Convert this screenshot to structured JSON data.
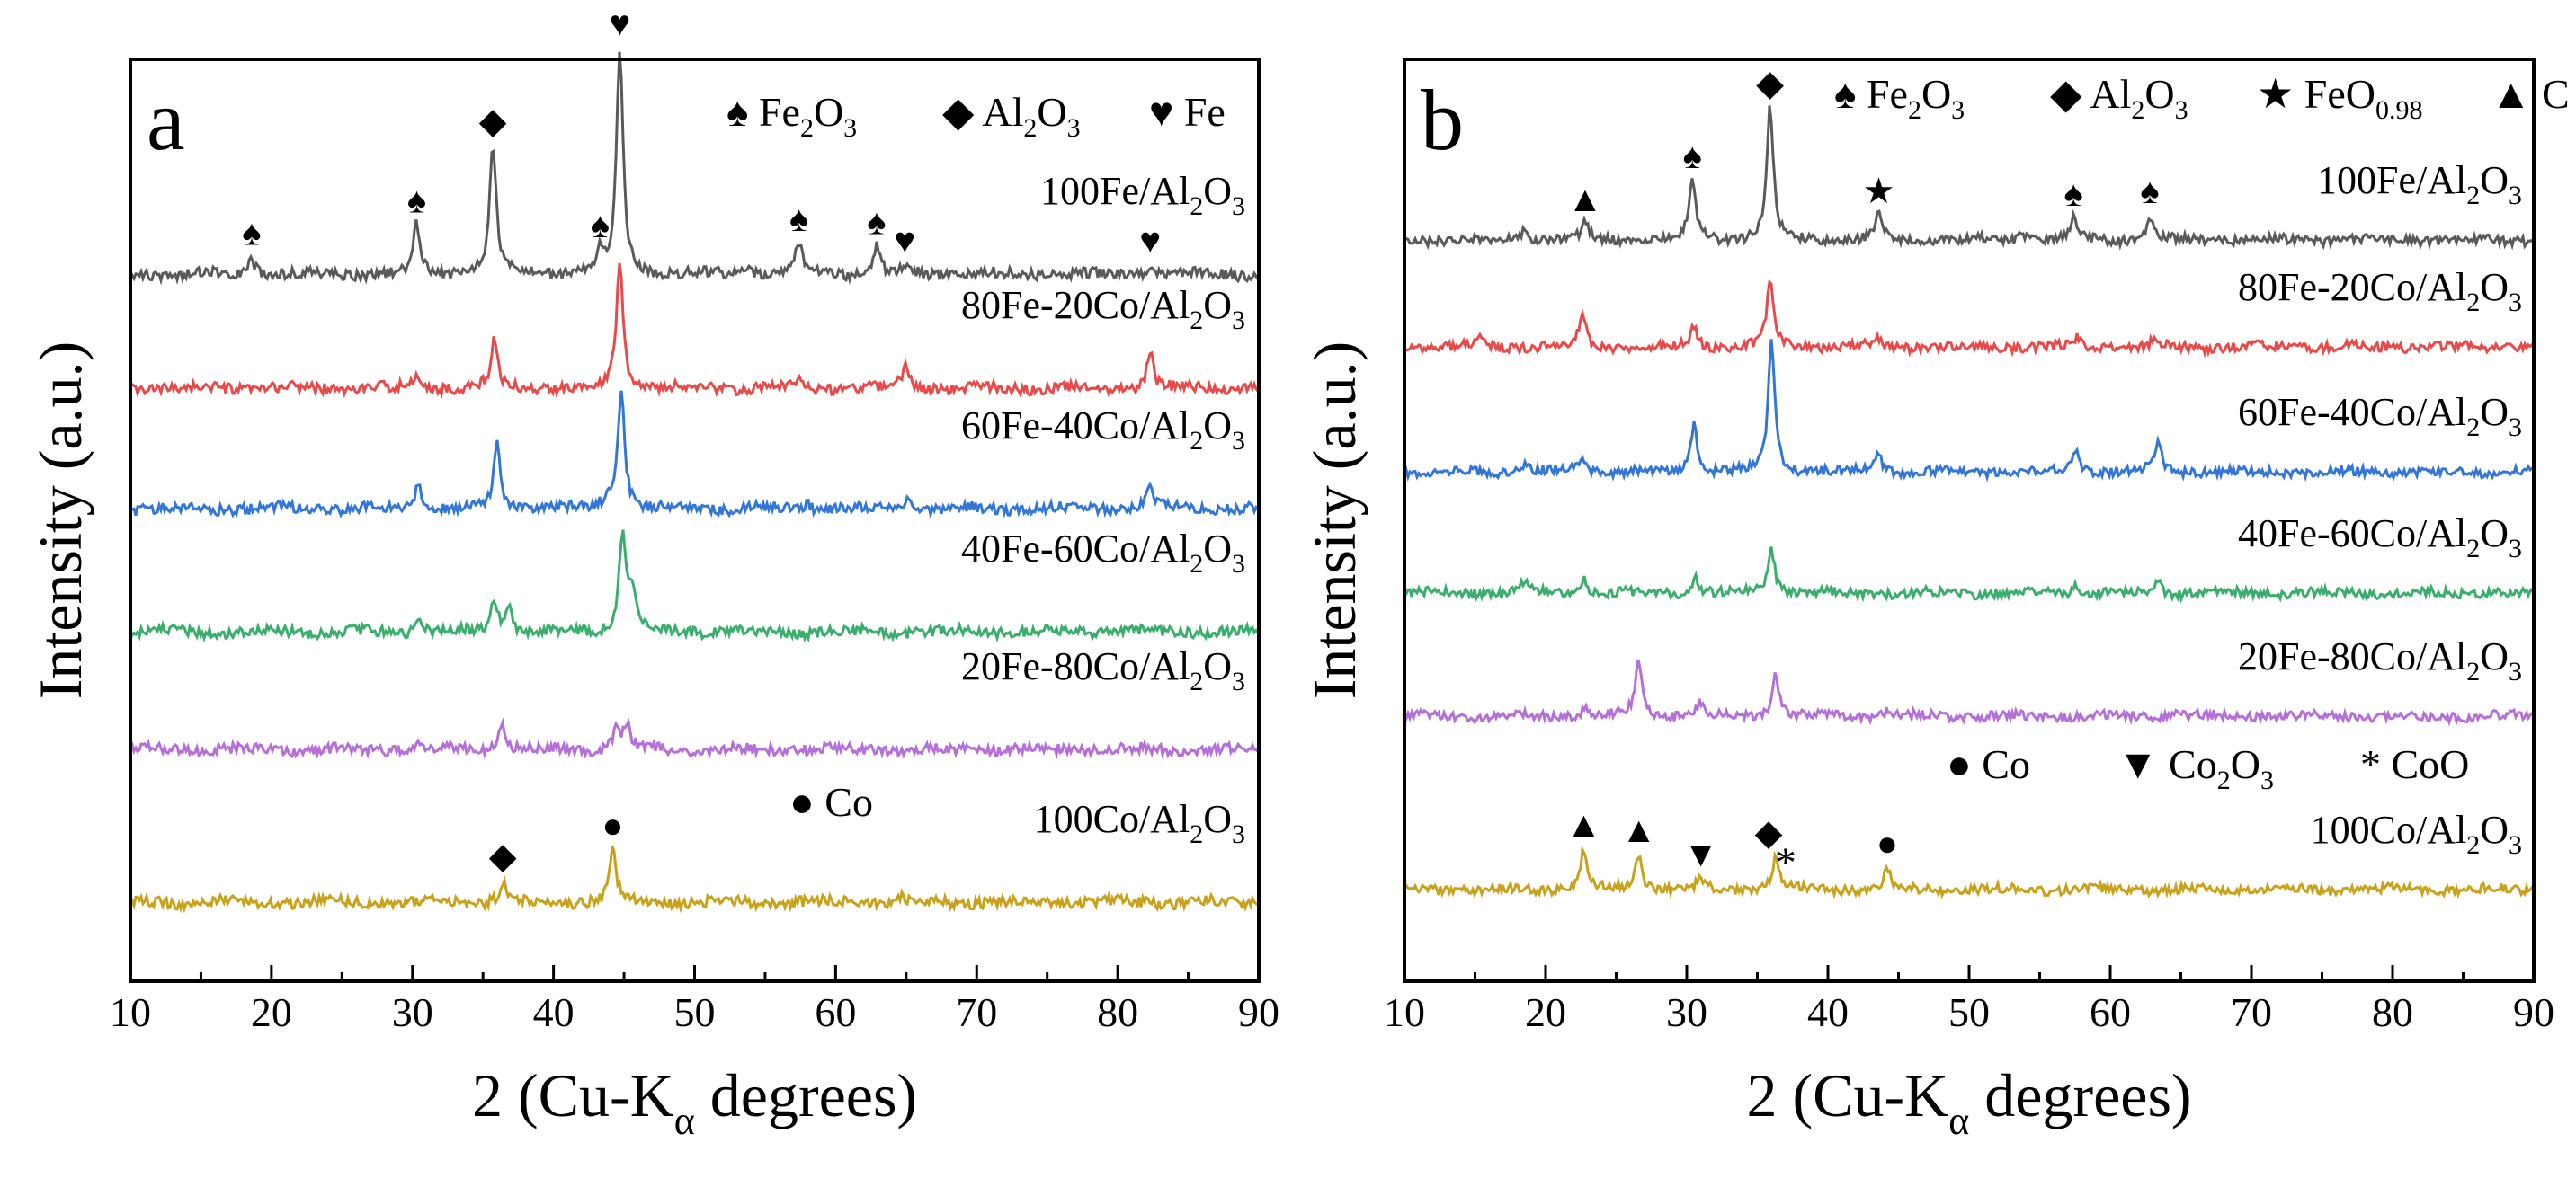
{
  "chart_data": [
    {
      "type": "line",
      "panel_label": "a",
      "xlabel_prefix": "2",
      "xlabel_main": "(Cu-K",
      "xlabel_sub": "α",
      "xlabel_suffix": " degrees)",
      "ylabel": "Intensity (a.u.)",
      "xlim": [
        10,
        90
      ],
      "xticks": [
        "10",
        "20",
        "30",
        "40",
        "50",
        "60",
        "70",
        "80",
        "90"
      ],
      "grid": false,
      "colors": [
        "#5a5a5a",
        "#e84a4a",
        "#3276d8",
        "#3aae6c",
        "#b56fd8",
        "#c9a21a"
      ],
      "series": [
        {
          "name": "100Fe/Al2O3",
          "label_main": "100Fe/Al",
          "label_sub": "2",
          "label_tail": "O",
          "label_sub2": "3",
          "baseline": 0,
          "peaks": [
            [
              18.6,
              0.55
            ],
            [
              30.3,
              1.6
            ],
            [
              35.7,
              4.2
            ],
            [
              43.3,
              0.8
            ],
            [
              44.7,
              7.4
            ],
            [
              53.8,
              0.2
            ],
            [
              57.4,
              1.0
            ],
            [
              62.9,
              0.9
            ],
            [
              64.9,
              0.3
            ],
            [
              82.3,
              0.3
            ]
          ]
        },
        {
          "name": "80Fe-20Co/Al2O3",
          "label_main": "80Fe-20Co/Al",
          "label_sub": "2",
          "label_tail": "O",
          "label_sub2": "3",
          "baseline": 0,
          "peaks": [
            [
              30.4,
              0.4
            ],
            [
              35.8,
              1.5
            ],
            [
              44.7,
              4.3
            ],
            [
              57.5,
              0.3
            ],
            [
              65.0,
              0.8
            ],
            [
              82.3,
              1.2
            ]
          ]
        },
        {
          "name": "60Fe-40Co/Al2O3",
          "label_main": "60Fe-40Co/Al",
          "label_sub": "2",
          "label_tail": "O",
          "label_sub2": "3",
          "baseline": 0,
          "peaks": [
            [
              30.4,
              0.8
            ],
            [
              36.0,
              2.2
            ],
            [
              43.8,
              0.4
            ],
            [
              44.8,
              4.0
            ],
            [
              58.0,
              0.2
            ],
            [
              65.1,
              0.4
            ],
            [
              82.3,
              0.8
            ]
          ]
        },
        {
          "name": "40Fe-60Co/Al2O3",
          "label_main": "40Fe-60Co/Al",
          "label_sub": "2",
          "label_tail": "O",
          "label_sub2": "3",
          "baseline": 0,
          "peaks": [
            [
              30.5,
              0.4
            ],
            [
              35.8,
              1.0
            ],
            [
              36.8,
              0.8
            ],
            [
              44.9,
              3.3
            ],
            [
              45.6,
              1.2
            ]
          ]
        },
        {
          "name": "20Fe-80Co/Al2O3",
          "label_main": "20Fe-80Co/Al",
          "label_sub": "2",
          "label_tail": "O",
          "label_sub2": "3",
          "baseline": 0,
          "peaks": [
            [
              30.6,
              0.2
            ],
            [
              36.3,
              0.9
            ],
            [
              44.4,
              0.6
            ],
            [
              45.2,
              0.8
            ]
          ]
        },
        {
          "name": "100Co/Al2O3",
          "label_main": "100Co/Al",
          "label_sub": "2",
          "label_tail": "O",
          "label_sub2": "3",
          "baseline": 0,
          "peaks": [
            [
              36.4,
              0.7
            ],
            [
              44.2,
              1.7
            ],
            [
              64.7,
              0.2
            ]
          ]
        }
      ],
      "legend": [
        {
          "symbol": "♠",
          "main": "Fe",
          "sub": "2",
          "tail": "O",
          "sub2": "3"
        },
        {
          "symbol": "◆",
          "main": "Al",
          "sub": "2",
          "tail": "O",
          "sub2": "3"
        },
        {
          "symbol": "♥",
          "main": "Fe",
          "sub": "",
          "tail": "",
          "sub2": ""
        }
      ],
      "legend2": [
        {
          "symbol": "●",
          "main": "Co",
          "sub": "",
          "tail": "",
          "sub2": ""
        }
      ],
      "annotations": [
        {
          "symbol": "♠",
          "x": 18.6,
          "series": 0
        },
        {
          "symbol": "♠",
          "x": 30.3,
          "series": 0
        },
        {
          "symbol": "◆",
          "x": 35.7,
          "series": 0
        },
        {
          "symbol": "♠",
          "x": 43.3,
          "series": 0
        },
        {
          "symbol": "♥",
          "x": 44.7,
          "series": 0
        },
        {
          "symbol": "♠",
          "x": 57.4,
          "series": 0
        },
        {
          "symbol": "♠",
          "x": 62.9,
          "series": 0
        },
        {
          "symbol": "♥",
          "x": 64.9,
          "series": 0
        },
        {
          "symbol": "♥",
          "x": 82.3,
          "series": 0
        },
        {
          "symbol": "◆",
          "x": 36.4,
          "series": 5
        },
        {
          "symbol": "●",
          "x": 44.2,
          "series": 5
        }
      ]
    },
    {
      "type": "line",
      "panel_label": "b",
      "xlabel_prefix": "2",
      "xlabel_main": "(Cu-K",
      "xlabel_sub": "α",
      "xlabel_suffix": " degrees)",
      "ylabel": "Intensity (a.u.)",
      "xlim": [
        10,
        90
      ],
      "xticks": [
        "10",
        "20",
        "30",
        "40",
        "50",
        "60",
        "70",
        "80",
        "90"
      ],
      "grid": false,
      "colors": [
        "#5a5a5a",
        "#e84a4a",
        "#3276d8",
        "#3aae6c",
        "#b56fd8",
        "#c9a21a"
      ],
      "series": [
        {
          "name": "100Fe/Al2O3",
          "label_main": "100Fe/Al",
          "label_sub": "2",
          "label_tail": "O",
          "label_sub2": "3",
          "baseline": 0,
          "peaks": [
            [
              18.5,
              0.4
            ],
            [
              22.8,
              0.6
            ],
            [
              30.4,
              2.2
            ],
            [
              35.9,
              4.9
            ],
            [
              43.6,
              0.9
            ],
            [
              53.8,
              0.3
            ],
            [
              57.4,
              0.8
            ],
            [
              62.8,
              0.9
            ]
          ]
        },
        {
          "name": "80Fe-20Co/Al2O3",
          "label_main": "80Fe-20Co/Al",
          "label_sub": "2",
          "label_tail": "O",
          "label_sub2": "3",
          "baseline": 0,
          "peaks": [
            [
              15.5,
              0.3
            ],
            [
              22.6,
              1.2
            ],
            [
              30.5,
              0.8
            ],
            [
              35.9,
              2.3
            ],
            [
              43.6,
              0.3
            ],
            [
              57.6,
              0.3
            ],
            [
              63.2,
              0.3
            ]
          ]
        },
        {
          "name": "60Fe-40Co/Al2O3",
          "label_main": "60Fe-40Co/Al",
          "label_sub": "2",
          "label_tail": "O",
          "label_sub2": "3",
          "baseline": 0,
          "peaks": [
            [
              18.5,
              0.3
            ],
            [
              22.6,
              0.6
            ],
            [
              30.5,
              1.8
            ],
            [
              36.0,
              4.8
            ],
            [
              43.6,
              0.7
            ],
            [
              57.6,
              0.8
            ],
            [
              63.4,
              1.0
            ]
          ]
        },
        {
          "name": "40Fe-60Co/Al2O3",
          "label_main": "40Fe-60Co/Al",
          "label_sub": "2",
          "label_tail": "O",
          "label_sub2": "3",
          "baseline": 0,
          "peaks": [
            [
              18.5,
              0.4
            ],
            [
              22.7,
              0.6
            ],
            [
              30.6,
              0.6
            ],
            [
              36.0,
              1.7
            ],
            [
              57.6,
              0.3
            ],
            [
              63.4,
              0.4
            ]
          ]
        },
        {
          "name": "20Fe-80Co/Al2O3",
          "label_main": "20Fe-80Co/Al",
          "label_sub": "2",
          "label_tail": "O",
          "label_sub2": "3",
          "baseline": 0,
          "peaks": [
            [
              22.8,
              0.3
            ],
            [
              26.6,
              2.1
            ],
            [
              31.0,
              0.5
            ],
            [
              36.3,
              1.6
            ],
            [
              44.3,
              0.3
            ],
            [
              64.7,
              0.2
            ]
          ]
        },
        {
          "name": "100Co/Al2O3",
          "label_main": "100Co/Al",
          "label_sub": "2",
          "label_tail": "O",
          "label_sub2": "3",
          "baseline": 0,
          "peaks": [
            [
              22.7,
              1.5
            ],
            [
              26.6,
              1.3
            ],
            [
              31.0,
              0.4
            ],
            [
              36.3,
              1.2
            ],
            [
              44.2,
              0.8
            ]
          ]
        }
      ],
      "legend": [
        {
          "symbol": "♠",
          "main": "Fe",
          "sub": "2",
          "tail": "O",
          "sub2": "3"
        },
        {
          "symbol": "◆",
          "main": "Al",
          "sub": "2",
          "tail": "O",
          "sub2": "3"
        },
        {
          "symbol": "★",
          "main": "FeO",
          "sub": "0.98",
          "tail": "",
          "sub2": ""
        },
        {
          "symbol": "▲",
          "main": "C",
          "sub": "",
          "tail": "",
          "sub2": ""
        }
      ],
      "legend2": [
        {
          "symbol": "●",
          "main": "Co",
          "sub": "",
          "tail": "",
          "sub2": ""
        },
        {
          "symbol": "▼",
          "main": "Co",
          "sub": "2",
          "tail": "O",
          "sub2": "3"
        },
        {
          "symbol": "*",
          "main": "CoO",
          "sub": "",
          "tail": "",
          "sub2": ""
        }
      ],
      "annotations": [
        {
          "symbol": "▲",
          "x": 22.8,
          "series": 0
        },
        {
          "symbol": "♠",
          "x": 30.4,
          "series": 0
        },
        {
          "symbol": "◆",
          "x": 35.9,
          "series": 0
        },
        {
          "symbol": "★",
          "x": 43.6,
          "series": 0
        },
        {
          "symbol": "♠",
          "x": 57.4,
          "series": 0
        },
        {
          "symbol": "♠",
          "x": 62.8,
          "series": 0
        },
        {
          "symbol": "▲",
          "x": 22.7,
          "series": 5
        },
        {
          "symbol": "▲",
          "x": 26.6,
          "series": 5
        },
        {
          "symbol": "▼",
          "x": 31.0,
          "series": 5
        },
        {
          "symbol": "◆",
          "x": 35.8,
          "series": 5
        },
        {
          "symbol": "*",
          "x": 37.0,
          "series": 5
        },
        {
          "symbol": "●",
          "x": 44.2,
          "series": 5
        }
      ]
    }
  ]
}
